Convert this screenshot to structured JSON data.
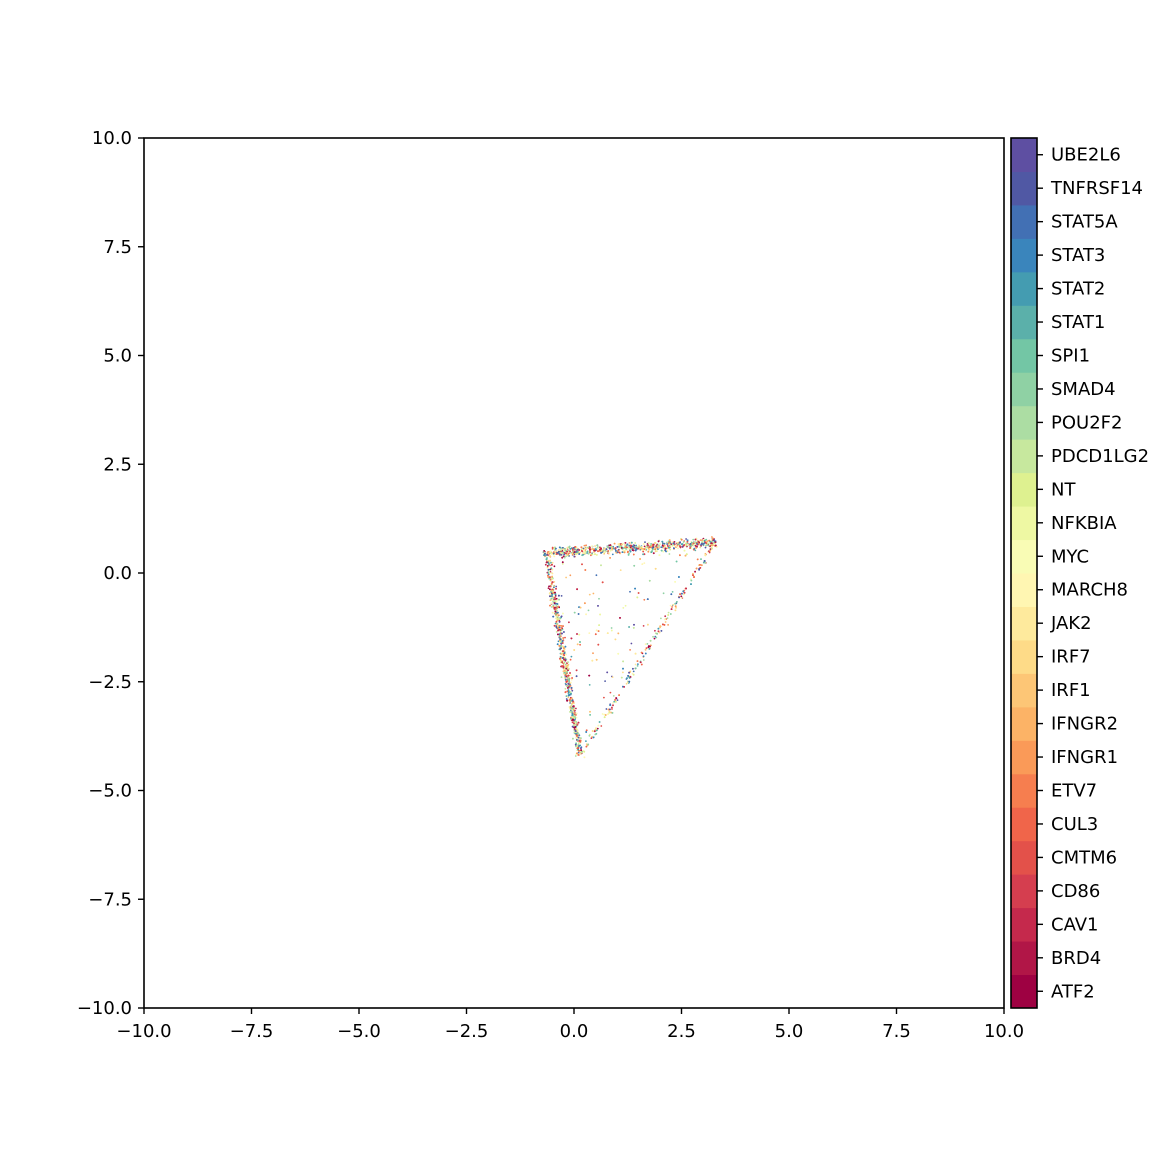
{
  "chart_data": {
    "type": "scatter",
    "title": "",
    "xlabel": "",
    "ylabel": "",
    "xlim": [
      -10,
      10
    ],
    "ylim": [
      -10,
      10
    ],
    "grid": false,
    "x_ticks": [
      "−10.0",
      "−7.5",
      "−5.0",
      "−2.5",
      "0.0",
      "2.5",
      "5.0",
      "7.5",
      "10.0"
    ],
    "y_ticks": [
      "10.0",
      "7.5",
      "5.0",
      "2.5",
      "0.0",
      "−2.5",
      "−5.0",
      "−7.5",
      "−10.0"
    ],
    "x_tick_values": [
      -10,
      -7.5,
      -5,
      -2.5,
      0,
      2.5,
      5,
      7.5,
      10
    ],
    "y_tick_values": [
      10,
      7.5,
      5,
      2.5,
      0,
      -2.5,
      -5,
      -7.5,
      -10
    ],
    "colorbar": {
      "colormap": "Spectral",
      "labels": [
        "ATF2",
        "BRD4",
        "CAV1",
        "CD86",
        "CMTM6",
        "CUL3",
        "ETV7",
        "IFNGR1",
        "IFNGR2",
        "IRF1",
        "IRF7",
        "JAK2",
        "MARCH8",
        "MYC",
        "NFKBIA",
        "NT",
        "PDCD1LG2",
        "POU2F2",
        "SMAD4",
        "SPI1",
        "STAT1",
        "STAT2",
        "STAT3",
        "STAT5A",
        "TNFRSF14",
        "UBE2L6"
      ],
      "colors": [
        "#9e0142",
        "#b11647",
        "#c5294c",
        "#d53e4f",
        "#e3514a",
        "#f0654a",
        "#f67e4f",
        "#fa9a58",
        "#fcb366",
        "#fdc676",
        "#fedb88",
        "#feea9d",
        "#fff6b2",
        "#f9fcb5",
        "#eef8a3",
        "#def190",
        "#c7e89e",
        "#acdda3",
        "#8fd1a4",
        "#73c6a5",
        "#5bb0aa",
        "#449cb1",
        "#3a85bc",
        "#4270b4",
        "#5058a4",
        "#5e4fa2"
      ]
    },
    "series_shape": [
      {
        "x": -0.65,
        "y": 0.5
      },
      {
        "x": 3.3,
        "y": 0.75
      },
      {
        "x": 0.15,
        "y": -4.2
      }
    ],
    "point_count": 3000
  }
}
